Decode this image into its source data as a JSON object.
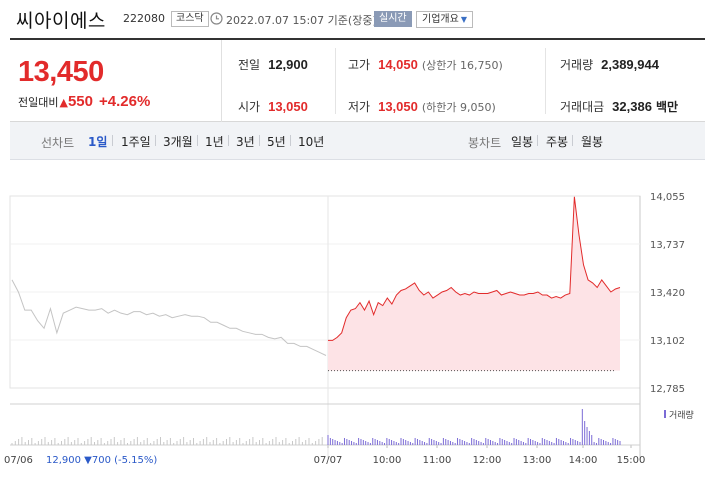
{
  "header": {
    "name": "씨아이에스",
    "code": "222080",
    "market": "코스닥",
    "timestamp": "2022.07.07 15:07 기준(장중)",
    "realtime": "실시간",
    "company_button": "기업개요"
  },
  "summary": {
    "price": "13,450",
    "change_label": "전일대비",
    "change": "550",
    "change_pct": "+4.26%",
    "prev_close_label": "전일",
    "prev_close": "12,900",
    "open_label": "시가",
    "open": "13,050",
    "high_label": "고가",
    "high": "14,050",
    "upper_limit": "(상한가 16,750)",
    "low_label": "저가",
    "low": "13,050",
    "lower_limit": "(하한가 9,050)",
    "volume_label": "거래량",
    "volume": "2,389,944",
    "value_label": "거래대금",
    "value": "32,386",
    "value_unit": "백만"
  },
  "periods": {
    "line_label": "선차트",
    "line_items": [
      "1일",
      "1주일",
      "3개월",
      "1년",
      "3년",
      "5년",
      "10년"
    ],
    "active": "1일",
    "candle_label": "봉차트",
    "candle_items": [
      "일봉",
      "주봉",
      "월봉"
    ]
  },
  "colors": {
    "up": "#e22b2b",
    "down": "#2a59c8",
    "prev_line": "#c4c4c4",
    "fill": "#fde3e6",
    "volume": "#7b6bd6",
    "prev_volume": "#c8c8c8"
  },
  "chart_data": {
    "type": "line",
    "yticks": [
      "14,055",
      "13,737",
      "13,420",
      "13,102",
      "12,785"
    ],
    "ylim": [
      12785,
      14055
    ],
    "xticks": [
      "07/06",
      "07/07",
      "10:00",
      "11:00",
      "12:00",
      "13:00",
      "14:00",
      "15:00"
    ],
    "volume_label": "거래량",
    "prev_day_summary": {
      "label": "07/06",
      "close": "12,900",
      "change": "▼700",
      "pct": "(-5.15%)"
    },
    "series": [
      {
        "values": [
          13500,
          13420,
          13300,
          13300,
          13230,
          13180,
          13310,
          13150,
          13280,
          13300,
          13320,
          13310,
          13300,
          13300,
          13310,
          13280,
          13300,
          13280,
          13270,
          13290,
          13290,
          13270,
          13280,
          13260,
          13270,
          13250,
          13260,
          13270,
          13260,
          13260,
          13250,
          13220,
          13220,
          13200,
          13180,
          13180,
          13160,
          13150,
          13140,
          13140,
          13120,
          13110,
          13120,
          13080,
          13080,
          13060,
          13060,
          13040,
          13020,
          13000
        ]
      },
      {
        "values": [
          13100,
          13100,
          13120,
          13150,
          13250,
          13300,
          13310,
          13350,
          13300,
          13360,
          13270,
          13350,
          13330,
          13380,
          13340,
          13400,
          13430,
          13440,
          13460,
          13480,
          13430,
          13400,
          13420,
          13380,
          13400,
          13420,
          13430,
          13450,
          13420,
          13400,
          13410,
          13400,
          13420,
          13410,
          13410,
          13410,
          13420,
          13430,
          13400,
          13410,
          13420,
          13410,
          13400,
          13400,
          13410,
          13410,
          13420,
          13400,
          13400,
          13380,
          13390,
          13380,
          13400,
          13410,
          14050,
          13800,
          13600,
          13500,
          13480,
          13450,
          13500,
          13460,
          13420,
          13440,
          13450
        ]
      }
    ],
    "baseline": 12900
  }
}
